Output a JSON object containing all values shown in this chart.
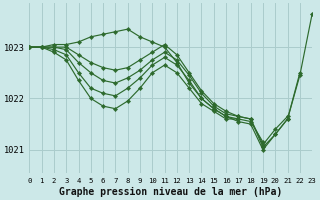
{
  "bg_color": "#cce8e8",
  "grid_color": "#aacccc",
  "line_color": "#2d6a2d",
  "marker_color": "#2d6a2d",
  "title": "Graphe pression niveau de la mer (hPa)",
  "title_fontsize": 7.0,
  "ylabel_ticks": [
    1021,
    1022,
    1023
  ],
  "xlim": [
    0,
    23
  ],
  "ylim": [
    1020.55,
    1023.85
  ],
  "xticks": [
    0,
    1,
    2,
    3,
    4,
    5,
    6,
    7,
    8,
    9,
    10,
    11,
    12,
    13,
    14,
    15,
    16,
    17,
    18,
    19,
    20,
    21,
    22,
    23
  ],
  "series": [
    {
      "x": [
        0,
        1,
        2,
        3,
        4,
        5,
        6,
        7,
        8,
        9,
        10,
        11,
        12,
        13,
        14,
        15,
        16,
        17,
        18,
        19,
        20,
        21,
        22,
        23
      ],
      "y": [
        1023.0,
        1023.0,
        1023.05,
        1023.05,
        1023.1,
        1023.2,
        1023.25,
        1023.3,
        1023.35,
        1023.2,
        1023.1,
        1023.0,
        1022.7,
        1022.3,
        1022.0,
        1021.8,
        1021.65,
        1021.55,
        1021.5,
        1021.0,
        1021.3,
        1021.6,
        1022.45,
        1023.65
      ]
    },
    {
      "x": [
        0,
        1,
        2,
        3,
        4,
        5,
        6,
        7,
        8,
        9,
        10,
        11,
        12,
        13,
        14,
        15,
        16,
        17,
        18,
        19,
        20,
        21,
        22
      ],
      "y": [
        1023.0,
        1023.0,
        1023.0,
        1023.0,
        1022.85,
        1022.7,
        1022.6,
        1022.55,
        1022.6,
        1022.75,
        1022.9,
        1023.05,
        1022.85,
        1022.5,
        1022.15,
        1021.9,
        1021.75,
        1021.65,
        1021.6,
        1021.05,
        1021.3,
        1021.6,
        1022.5
      ]
    },
    {
      "x": [
        0,
        1,
        2,
        3,
        4,
        5,
        6,
        7,
        8,
        9,
        10,
        11,
        12,
        13,
        14,
        15,
        16,
        17,
        18,
        19,
        20,
        21
      ],
      "y": [
        1023.0,
        1023.0,
        1023.0,
        1022.95,
        1022.7,
        1022.5,
        1022.35,
        1022.3,
        1022.4,
        1022.55,
        1022.75,
        1022.9,
        1022.75,
        1022.45,
        1022.1,
        1021.85,
        1021.7,
        1021.65,
        1021.6,
        1021.1,
        1021.4,
        1021.65
      ]
    },
    {
      "x": [
        0,
        1,
        2,
        3,
        4,
        5,
        6,
        7,
        8,
        9,
        10,
        11,
        12,
        13,
        14,
        15,
        16,
        17,
        18,
        19
      ],
      "y": [
        1023.0,
        1023.0,
        1022.95,
        1022.85,
        1022.5,
        1022.2,
        1022.1,
        1022.05,
        1022.2,
        1022.4,
        1022.65,
        1022.8,
        1022.65,
        1022.35,
        1022.0,
        1021.8,
        1021.65,
        1021.6,
        1021.55,
        1021.15
      ]
    },
    {
      "x": [
        0,
        1,
        2,
        3,
        4,
        5,
        6,
        7,
        8,
        9,
        10,
        11,
        12,
        13,
        14,
        15,
        16,
        17
      ],
      "y": [
        1023.0,
        1023.0,
        1022.9,
        1022.75,
        1022.35,
        1022.0,
        1021.85,
        1021.8,
        1021.95,
        1022.2,
        1022.5,
        1022.65,
        1022.5,
        1022.2,
        1021.9,
        1021.75,
        1021.6,
        1021.6
      ]
    }
  ]
}
